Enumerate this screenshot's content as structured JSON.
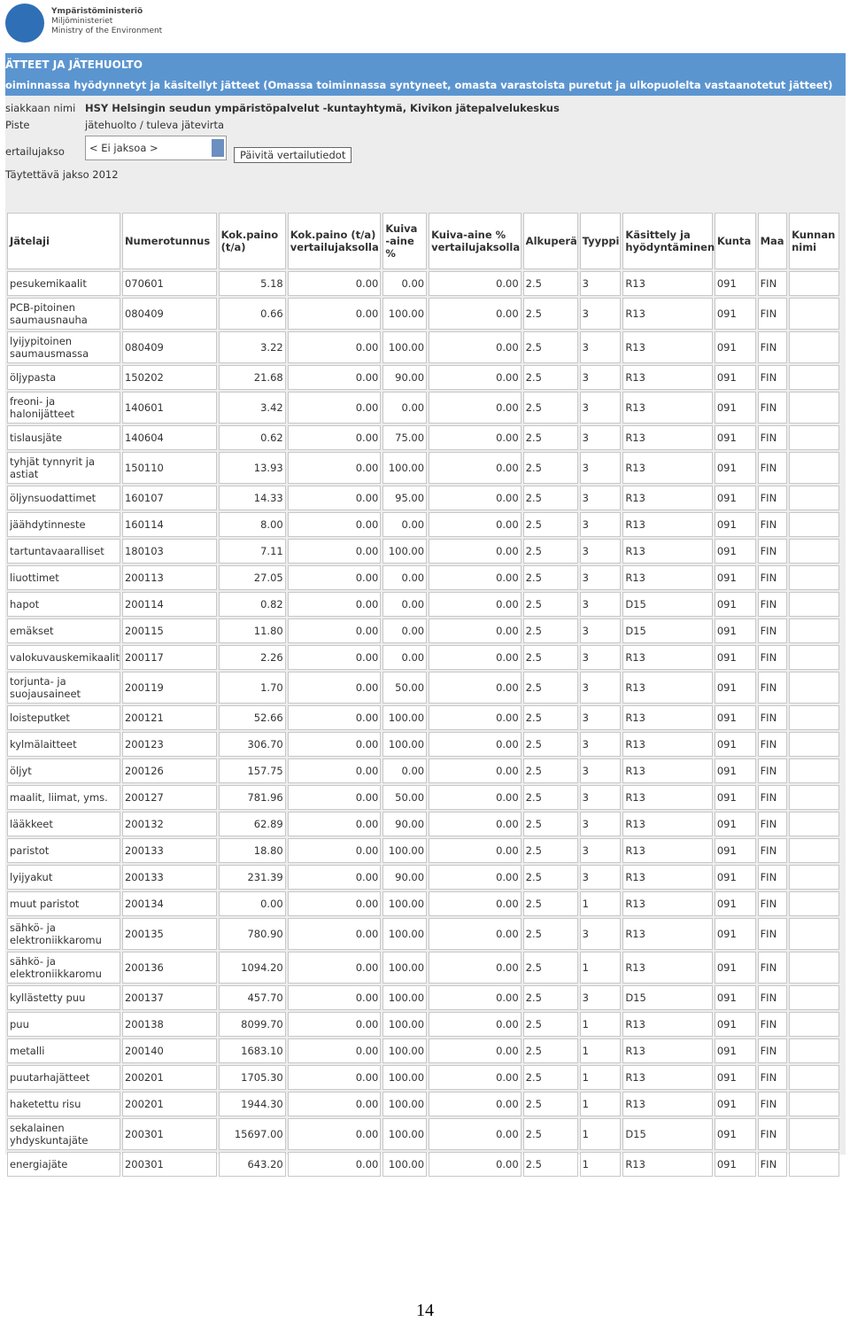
{
  "header": {
    "logo_lines": [
      "Ympäristöministeriö",
      "Miljöministeriet",
      "Ministry of the Environment"
    ]
  },
  "banner": {
    "title": "ÄTTEET JA JÄTEHUOLTO",
    "subtitle": "oiminnassa hyödynnetyt ja käsitellyt jätteet (Omassa toiminnassa syntyneet, omasta varastoista puretut ja ulkopuolelta vastaanotetut jätteet)"
  },
  "info": {
    "customer_label": "siakkaan nimi",
    "customer": "HSY Helsingin seudun ympäristöpalvelut -kuntayhtymä, Kivikon jätepalvelukeskus",
    "point_label": "Piste",
    "point": "jätehuolto / tuleva jätevirta",
    "period_label": "ertailujakso",
    "period_select": "< Ei jaksoa >",
    "update_button": "Päivitä vertailutiedot",
    "fill_period": "Täytettävä jakso 2012"
  },
  "table": {
    "columns": [
      "Jätelaji",
      "Numerotunnus",
      "Kok.paino (t/a)",
      "Kok.paino (t/a) vertailujaksolla",
      "Kuiva -aine %",
      "Kuiva-aine % vertailujaksolla",
      "Alkuperä",
      "Tyyppi",
      "Käsittely ja hyödyntäminen",
      "Kunta",
      "Maa",
      "Kunnan nimi"
    ],
    "rows": [
      [
        "pesukemikaalit",
        "070601",
        "5.18",
        "0.00",
        "0.00",
        "0.00",
        "2.5",
        "3",
        "R13",
        "091",
        "FIN"
      ],
      [
        "PCB-pitoinen saumausnauha",
        "080409",
        "0.66",
        "0.00",
        "100.00",
        "0.00",
        "2.5",
        "3",
        "R13",
        "091",
        "FIN"
      ],
      [
        "lyijypitoinen saumausmassa",
        "080409",
        "3.22",
        "0.00",
        "100.00",
        "0.00",
        "2.5",
        "3",
        "R13",
        "091",
        "FIN"
      ],
      [
        "öljypasta",
        "150202",
        "21.68",
        "0.00",
        "90.00",
        "0.00",
        "2.5",
        "3",
        "R13",
        "091",
        "FIN"
      ],
      [
        "freoni- ja halonijätteet",
        "140601",
        "3.42",
        "0.00",
        "0.00",
        "0.00",
        "2.5",
        "3",
        "R13",
        "091",
        "FIN"
      ],
      [
        "tislausjäte",
        "140604",
        "0.62",
        "0.00",
        "75.00",
        "0.00",
        "2.5",
        "3",
        "R13",
        "091",
        "FIN"
      ],
      [
        "tyhjät tynnyrit ja astiat",
        "150110",
        "13.93",
        "0.00",
        "100.00",
        "0.00",
        "2.5",
        "3",
        "R13",
        "091",
        "FIN"
      ],
      [
        "öljynsuodattimet",
        "160107",
        "14.33",
        "0.00",
        "95.00",
        "0.00",
        "2.5",
        "3",
        "R13",
        "091",
        "FIN"
      ],
      [
        "jäähdytinneste",
        "160114",
        "8.00",
        "0.00",
        "0.00",
        "0.00",
        "2.5",
        "3",
        "R13",
        "091",
        "FIN"
      ],
      [
        "tartuntavaaralliset",
        "180103",
        "7.11",
        "0.00",
        "100.00",
        "0.00",
        "2.5",
        "3",
        "R13",
        "091",
        "FIN"
      ],
      [
        "liuottimet",
        "200113",
        "27.05",
        "0.00",
        "0.00",
        "0.00",
        "2.5",
        "3",
        "R13",
        "091",
        "FIN"
      ],
      [
        "hapot",
        "200114",
        "0.82",
        "0.00",
        "0.00",
        "0.00",
        "2.5",
        "3",
        "D15",
        "091",
        "FIN"
      ],
      [
        "emäkset",
        "200115",
        "11.80",
        "0.00",
        "0.00",
        "0.00",
        "2.5",
        "3",
        "D15",
        "091",
        "FIN"
      ],
      [
        "valokuvauskemikaalit",
        "200117",
        "2.26",
        "0.00",
        "0.00",
        "0.00",
        "2.5",
        "3",
        "R13",
        "091",
        "FIN"
      ],
      [
        "torjunta- ja suojausaineet",
        "200119",
        "1.70",
        "0.00",
        "50.00",
        "0.00",
        "2.5",
        "3",
        "R13",
        "091",
        "FIN"
      ],
      [
        "loisteputket",
        "200121",
        "52.66",
        "0.00",
        "100.00",
        "0.00",
        "2.5",
        "3",
        "R13",
        "091",
        "FIN"
      ],
      [
        "kylmälaitteet",
        "200123",
        "306.70",
        "0.00",
        "100.00",
        "0.00",
        "2.5",
        "3",
        "R13",
        "091",
        "FIN"
      ],
      [
        "öljyt",
        "200126",
        "157.75",
        "0.00",
        "0.00",
        "0.00",
        "2.5",
        "3",
        "R13",
        "091",
        "FIN"
      ],
      [
        "maalit, liimat, yms.",
        "200127",
        "781.96",
        "0.00",
        "50.00",
        "0.00",
        "2.5",
        "3",
        "R13",
        "091",
        "FIN"
      ],
      [
        "lääkkeet",
        "200132",
        "62.89",
        "0.00",
        "90.00",
        "0.00",
        "2.5",
        "3",
        "R13",
        "091",
        "FIN"
      ],
      [
        "paristot",
        "200133",
        "18.80",
        "0.00",
        "100.00",
        "0.00",
        "2.5",
        "3",
        "R13",
        "091",
        "FIN"
      ],
      [
        "lyijyakut",
        "200133",
        "231.39",
        "0.00",
        "90.00",
        "0.00",
        "2.5",
        "3",
        "R13",
        "091",
        "FIN"
      ],
      [
        "muut paristot",
        "200134",
        "0.00",
        "0.00",
        "100.00",
        "0.00",
        "2.5",
        "1",
        "R13",
        "091",
        "FIN"
      ],
      [
        "sähkö- ja elektroniikkaromu",
        "200135",
        "780.90",
        "0.00",
        "100.00",
        "0.00",
        "2.5",
        "3",
        "R13",
        "091",
        "FIN"
      ],
      [
        "sähkö- ja elektroniikkaromu",
        "200136",
        "1094.20",
        "0.00",
        "100.00",
        "0.00",
        "2.5",
        "1",
        "R13",
        "091",
        "FIN"
      ],
      [
        "kyllästetty puu",
        "200137",
        "457.70",
        "0.00",
        "100.00",
        "0.00",
        "2.5",
        "3",
        "D15",
        "091",
        "FIN"
      ],
      [
        "puu",
        "200138",
        "8099.70",
        "0.00",
        "100.00",
        "0.00",
        "2.5",
        "1",
        "R13",
        "091",
        "FIN"
      ],
      [
        "metalli",
        "200140",
        "1683.10",
        "0.00",
        "100.00",
        "0.00",
        "2.5",
        "1",
        "R13",
        "091",
        "FIN"
      ],
      [
        "puutarhajätteet",
        "200201",
        "1705.30",
        "0.00",
        "100.00",
        "0.00",
        "2.5",
        "1",
        "R13",
        "091",
        "FIN"
      ],
      [
        "haketettu risu",
        "200201",
        "1944.30",
        "0.00",
        "100.00",
        "0.00",
        "2.5",
        "1",
        "R13",
        "091",
        "FIN"
      ],
      [
        "sekalainen yhdyskuntajäte",
        "200301",
        "15697.00",
        "0.00",
        "100.00",
        "0.00",
        "2.5",
        "1",
        "D15",
        "091",
        "FIN"
      ],
      [
        "energiajäte",
        "200301",
        "643.20",
        "0.00",
        "100.00",
        "0.00",
        "2.5",
        "1",
        "R13",
        "091",
        "FIN"
      ]
    ]
  },
  "footer": {
    "page_number": "14"
  }
}
